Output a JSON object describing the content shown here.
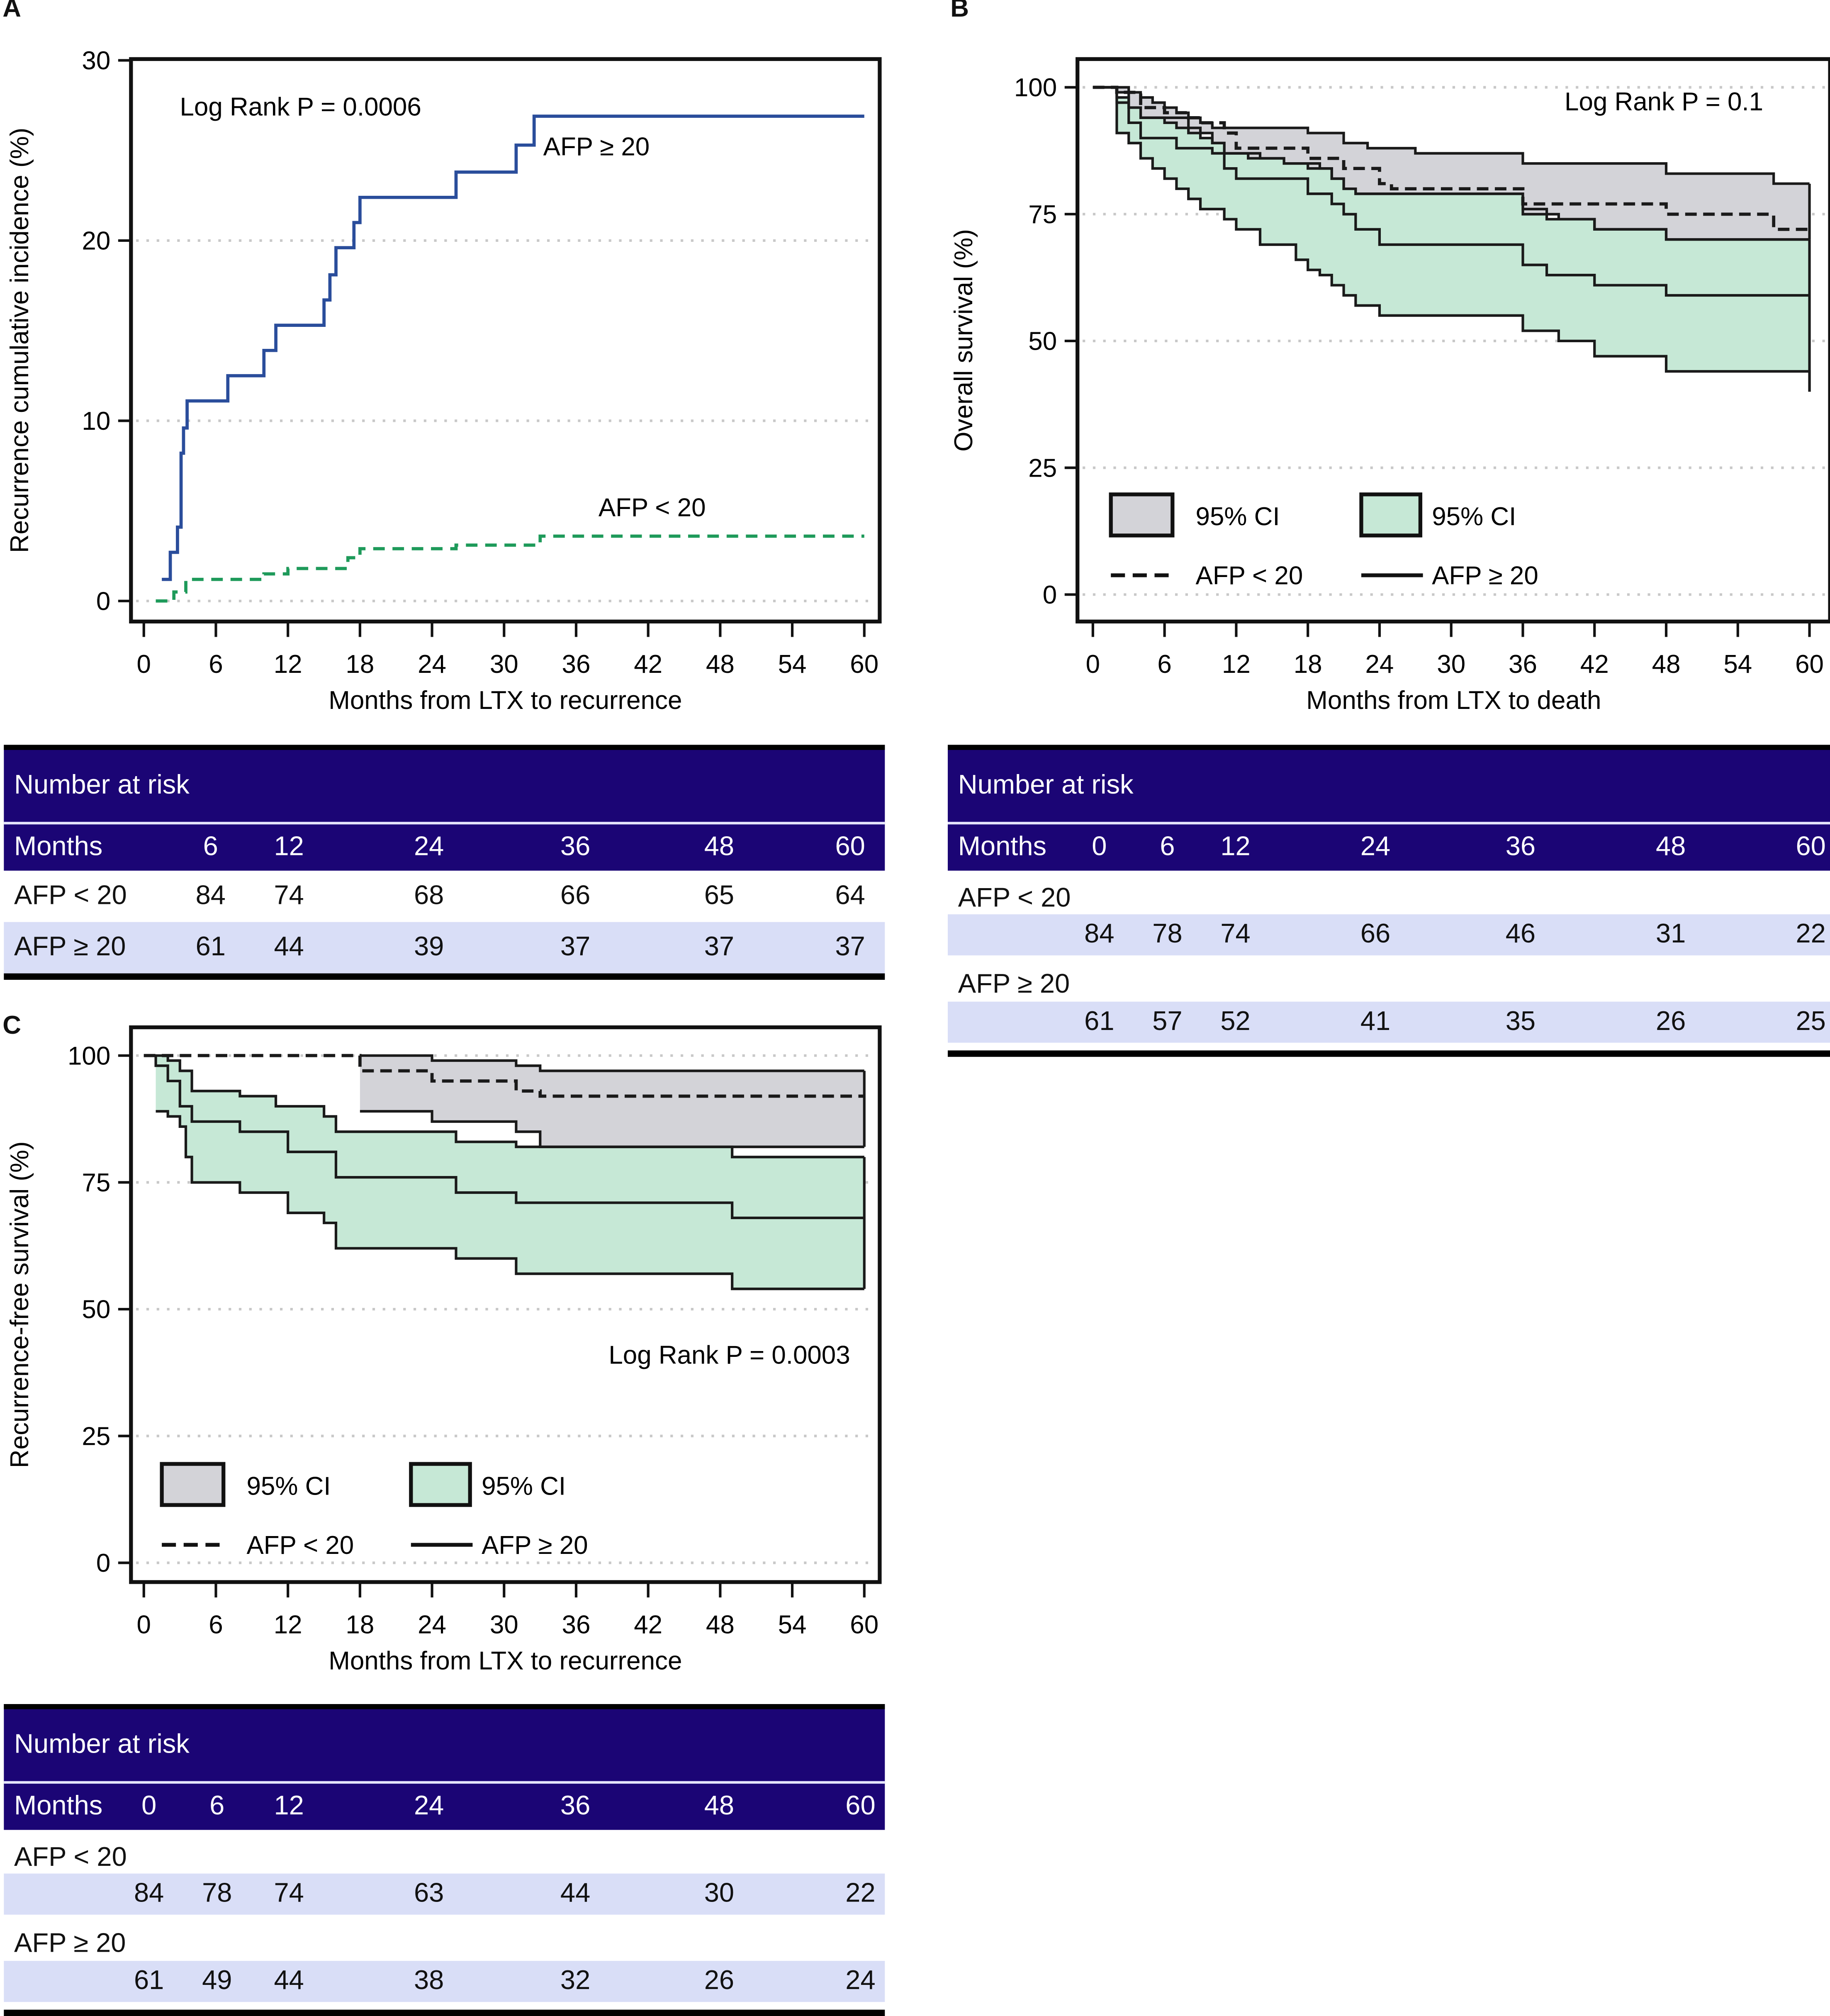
{
  "panels": {
    "A": {
      "letter": "A",
      "pvalue": "Log Rank P = 0.0006",
      "label_high": "AFP ≥ 20",
      "label_low": "AFP < 20",
      "risk": {
        "title": "Number at risk",
        "months_label": "Months",
        "months": [
          "6",
          "12",
          "24",
          "36",
          "48",
          "60"
        ],
        "rows": [
          {
            "label": "AFP < 20",
            "values": [
              "84",
              "74",
              "68",
              "66",
              "65",
              "64"
            ]
          },
          {
            "label": "AFP ≥ 20",
            "values": [
              "61",
              "44",
              "39",
              "37",
              "37",
              "37"
            ]
          }
        ]
      }
    },
    "B": {
      "letter": "B",
      "pvalue": "Log Rank P = 0.1",
      "legend": {
        "ci_gray": "95% CI",
        "ci_green": "95% CI",
        "dashed": "AFP < 20",
        "solid": "AFP ≥ 20"
      },
      "risk": {
        "title": "Number at risk",
        "months_label": "Months",
        "months": [
          "0",
          "6",
          "12",
          "24",
          "36",
          "48",
          "60"
        ],
        "rows": [
          {
            "label": "AFP < 20",
            "values": [
              "84",
              "78",
              "74",
              "66",
              "46",
              "31",
              "22"
            ]
          },
          {
            "label": "AFP ≥ 20",
            "values": [
              "61",
              "57",
              "52",
              "41",
              "35",
              "26",
              "25"
            ]
          }
        ]
      }
    },
    "C": {
      "letter": "C",
      "pvalue": "Log Rank P = 0.0003",
      "legend": {
        "ci_gray": "95% CI",
        "ci_green": "95% CI",
        "dashed": "AFP < 20",
        "solid": "AFP ≥ 20"
      },
      "risk": {
        "title": "Number at risk",
        "months_label": "Months",
        "months": [
          "0",
          "6",
          "12",
          "24",
          "36",
          "48",
          "60"
        ],
        "rows": [
          {
            "label": "AFP < 20",
            "values": [
              "84",
              "78",
              "74",
              "63",
              "44",
              "30",
              "22"
            ]
          },
          {
            "label": "AFP ≥ 20",
            "values": [
              "61",
              "49",
              "44",
              "38",
              "32",
              "26",
              "24"
            ]
          }
        ]
      }
    }
  },
  "colors": {
    "header_bg": "#1b0575",
    "band": "#d9def7",
    "blue": "#2a4d9b",
    "green": "#1e9a5a",
    "ci_gray": "#d3d3d8",
    "ci_green": "#c6e8d6"
  },
  "chart_data": [
    {
      "id": "A",
      "type": "line",
      "title": "",
      "xlabel": "Months from LTX to recurrence",
      "ylabel": "Recurrence cumulative incidence (%)",
      "xlim": [
        0,
        60
      ],
      "ylim": [
        0,
        30
      ],
      "xticks": [
        0,
        6,
        12,
        18,
        24,
        30,
        36,
        42,
        48,
        54,
        60
      ],
      "yticks": [
        0,
        10,
        20,
        30
      ],
      "grid": "horizontal dotted",
      "series": [
        {
          "name": "AFP ≥ 20",
          "style": "solid",
          "color": "#2a4d9b",
          "x": [
            1.5,
            2.2,
            2.8,
            3.1,
            3.3,
            3.6,
            4,
            7,
            10,
            11,
            15,
            15.5,
            16,
            17,
            17.5,
            18,
            26,
            31,
            32.5,
            60
          ],
          "y": [
            1.2,
            2.7,
            4.1,
            8.2,
            9.6,
            11.1,
            11.1,
            12.5,
            13.9,
            15.3,
            16.7,
            18.1,
            19.6,
            19.6,
            21,
            22.4,
            23.8,
            25.3,
            26.9,
            26.9
          ]
        },
        {
          "name": "AFP < 20",
          "style": "dashed",
          "color": "#1e9a5a",
          "x": [
            1,
            2.5,
            3.5,
            7,
            10,
            12,
            15,
            17,
            18,
            26,
            31,
            33,
            60
          ],
          "y": [
            0,
            0.5,
            1.2,
            1.2,
            1.5,
            1.8,
            1.8,
            2.4,
            2.9,
            3.1,
            3.1,
            3.6,
            3.6
          ]
        }
      ]
    },
    {
      "id": "B",
      "type": "area",
      "title": "",
      "xlabel": "Months from LTX to death",
      "ylabel": "Overall survival (%)",
      "xlim": [
        0,
        60
      ],
      "ylim": [
        0,
        100
      ],
      "xticks": [
        0,
        6,
        12,
        18,
        24,
        30,
        36,
        42,
        48,
        54,
        60
      ],
      "yticks": [
        0,
        25,
        50,
        75,
        100
      ],
      "grid": "horizontal dotted",
      "series": [
        {
          "name": "AFP < 20 upper CI",
          "x": [
            0,
            2,
            3,
            4,
            5,
            6,
            7,
            8,
            9,
            10,
            13,
            18,
            21,
            23,
            27,
            35.5,
            36,
            48,
            57,
            60
          ],
          "y": [
            100,
            100,
            99,
            98,
            97,
            96,
            95,
            94,
            93,
            92,
            92,
            91,
            89,
            88,
            87,
            87,
            85,
            83,
            81,
            81
          ]
        },
        {
          "name": "AFP < 20",
          "style": "dashed",
          "x": [
            0,
            2,
            4,
            6,
            8,
            9,
            11,
            12,
            15,
            18,
            21,
            24,
            25,
            35,
            36,
            48,
            57,
            60
          ],
          "y": [
            100,
            99,
            96,
            95,
            94,
            93,
            91,
            88,
            88,
            86,
            84,
            81,
            80,
            80,
            77,
            75,
            72,
            72
          ]
        },
        {
          "name": "AFP < 20 lower CI",
          "x": [
            0,
            2,
            3,
            4,
            6,
            7,
            8,
            10,
            11,
            13,
            16,
            18,
            20,
            21,
            22,
            24,
            35,
            36,
            39,
            42,
            48,
            60
          ],
          "y": [
            100,
            99,
            96,
            94,
            93,
            92,
            91,
            89,
            87,
            86,
            85,
            84,
            82,
            80,
            79,
            79,
            79,
            75,
            74,
            72,
            70,
            70
          ]
        },
        {
          "name": "AFP ≥ 20 upper CI",
          "x": [
            0,
            2,
            3,
            4,
            7,
            8,
            9,
            10,
            11,
            14,
            16,
            19,
            20,
            21,
            22,
            24,
            35,
            36,
            38,
            42,
            48,
            60
          ],
          "y": [
            100,
            98,
            96,
            94,
            94,
            92,
            90,
            89,
            87,
            86,
            85,
            84,
            82,
            80,
            79,
            79,
            79,
            76,
            74,
            72,
            70,
            70
          ]
        },
        {
          "name": "AFP ≥ 20",
          "style": "solid",
          "x": [
            0,
            2,
            3,
            4,
            7,
            10,
            11,
            12,
            15,
            18,
            20,
            21,
            22,
            24,
            35,
            36,
            38,
            42,
            48,
            60
          ],
          "y": [
            100,
            97,
            93,
            90,
            88,
            87,
            84,
            82,
            82,
            79,
            77,
            75,
            72,
            69,
            69,
            65,
            63,
            61,
            59,
            59
          ]
        },
        {
          "name": "AFP ≥ 20 lower CI",
          "x": [
            0,
            2,
            3,
            4,
            5,
            6,
            7,
            8,
            9,
            10,
            11,
            12,
            14,
            17,
            18,
            19,
            20,
            21,
            22,
            24,
            35,
            36,
            39,
            42,
            48,
            60
          ],
          "y": [
            100,
            91,
            89,
            86,
            84,
            82,
            80,
            78,
            76,
            76,
            74,
            72,
            69,
            66,
            64,
            63,
            61,
            59,
            57,
            55,
            55,
            52,
            50,
            47,
            44,
            40
          ]
        }
      ]
    },
    {
      "id": "C",
      "type": "area",
      "title": "",
      "xlabel": "Months from LTX to recurrence",
      "ylabel": "Recurrence-free survival (%)",
      "xlim": [
        0,
        60
      ],
      "ylim": [
        0,
        100
      ],
      "xticks": [
        0,
        6,
        12,
        18,
        24,
        30,
        36,
        42,
        48,
        54,
        60
      ],
      "yticks": [
        0,
        25,
        50,
        75,
        100
      ],
      "grid": "horizontal dotted",
      "series": [
        {
          "name": "AFP < 20 upper CI",
          "x": [
            18,
            24,
            31,
            33,
            60
          ],
          "y": [
            100,
            99,
            98,
            97,
            97
          ]
        },
        {
          "name": "AFP < 20",
          "style": "dashed",
          "x": [
            0,
            18,
            24,
            31,
            33,
            60
          ],
          "y": [
            100,
            97,
            95,
            93,
            92,
            92
          ]
        },
        {
          "name": "AFP < 20 lower CI",
          "x": [
            18,
            24,
            31,
            33,
            60
          ],
          "y": [
            89,
            87,
            85,
            82,
            82
          ]
        },
        {
          "name": "AFP ≥ 20 upper CI",
          "x": [
            1,
            2,
            3,
            4,
            8,
            11,
            15,
            16,
            26,
            31,
            49,
            60
          ],
          "y": [
            100,
            99,
            97,
            93,
            92,
            90,
            88,
            85,
            83,
            82,
            80,
            80
          ]
        },
        {
          "name": "AFP ≥ 20",
          "style": "solid",
          "x": [
            0,
            1,
            2,
            3,
            4,
            8,
            12,
            16,
            26,
            31,
            49,
            60
          ],
          "y": [
            100,
            98,
            95,
            90,
            87,
            85,
            81,
            76,
            73,
            71,
            68,
            68
          ]
        },
        {
          "name": "AFP ≥ 20 lower CI",
          "x": [
            1,
            2,
            3,
            3.5,
            4,
            8,
            12,
            15,
            16,
            26,
            31,
            49,
            60
          ],
          "y": [
            89,
            88,
            86,
            80,
            75,
            73,
            69,
            67,
            62,
            60,
            57,
            54,
            54
          ]
        }
      ]
    }
  ]
}
